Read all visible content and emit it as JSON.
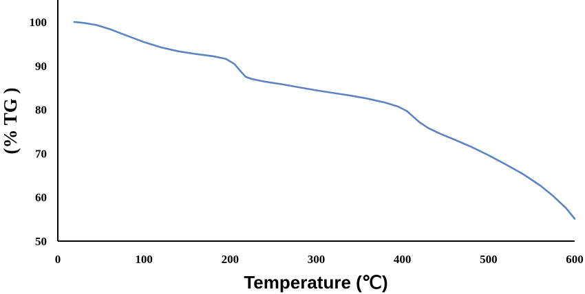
{
  "chart_data": {
    "type": "line",
    "title": "",
    "xlabel": "Temperature (℃)",
    "ylabel": "(% TG )",
    "xlim": [
      0,
      600
    ],
    "ylim": [
      50,
      100
    ],
    "x_ticks": [
      "0",
      "100",
      "200",
      "300",
      "400",
      "500",
      "600"
    ],
    "y_ticks": [
      "50",
      "60",
      "70",
      "80",
      "90",
      "100"
    ],
    "grid": false,
    "legend": "none",
    "series": [
      {
        "color": "#5b84c0",
        "x": [
          19,
          30,
          45,
          60,
          80,
          100,
          120,
          140,
          160,
          180,
          195,
          205,
          212,
          218,
          225,
          240,
          260,
          280,
          300,
          320,
          340,
          360,
          380,
          395,
          405,
          412,
          420,
          430,
          445,
          460,
          480,
          500,
          520,
          540,
          560,
          575,
          590,
          600
        ],
        "y": [
          100,
          99.8,
          99.3,
          98.4,
          96.9,
          95.4,
          94.2,
          93.3,
          92.7,
          92.2,
          91.6,
          90.4,
          88.8,
          87.5,
          87.0,
          86.4,
          85.8,
          85.1,
          84.4,
          83.8,
          83.2,
          82.5,
          81.6,
          80.7,
          79.7,
          78.5,
          77.1,
          75.8,
          74.4,
          73.2,
          71.5,
          69.6,
          67.5,
          65.3,
          62.7,
          60.3,
          57.5,
          55.1
        ]
      }
    ]
  }
}
